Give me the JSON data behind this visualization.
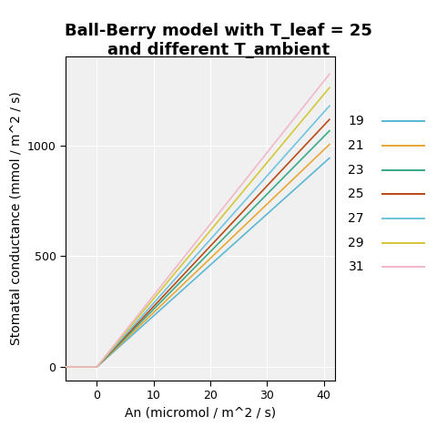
{
  "title_line1": "Ball-Berry model with T_leaf = 25",
  "title_line2": "and different T_ambient",
  "xlabel": "An (micromol / m^2 / s)",
  "ylabel": "Stomatal conductance (mmol / m^2 / s)",
  "T_ambients": [
    19,
    21,
    23,
    25,
    27,
    29,
    31
  ],
  "colors": [
    "#5BB8D4",
    "#E8A838",
    "#3AAA8A",
    "#B84C1A",
    "#71C4E0",
    "#D4C83A",
    "#F0B8C8"
  ],
  "gsw_at_40": [
    920,
    980,
    1040,
    1090,
    1150,
    1230,
    1290
  ],
  "An_min": -6,
  "An_max": 41,
  "xlim": [
    -5.5,
    42
  ],
  "ylim": [
    -60,
    1400
  ],
  "xticks": [
    0,
    10,
    20,
    30,
    40
  ],
  "yticks": [
    0,
    500,
    1000
  ],
  "plot_bg": "#F0F0F0",
  "grid_color": "white",
  "title_fontsize": 13,
  "label_fontsize": 10,
  "tick_fontsize": 9,
  "legend_fontsize": 10,
  "linewidth": 1.2
}
